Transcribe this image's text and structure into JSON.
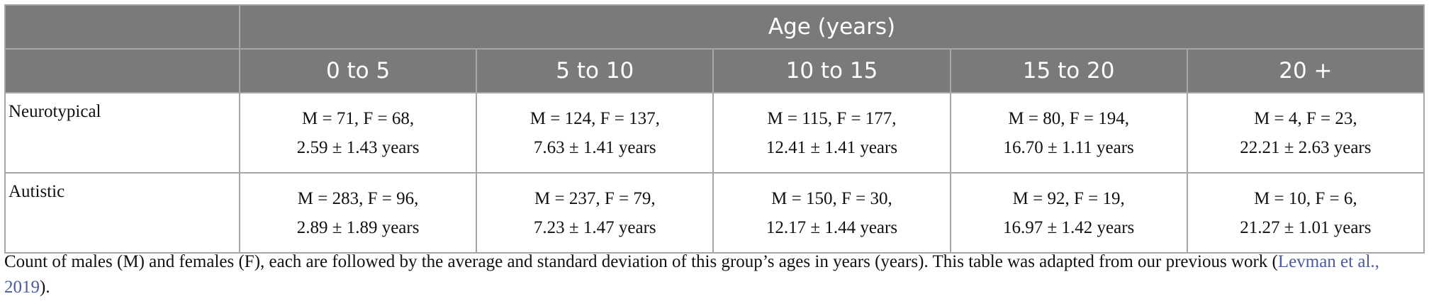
{
  "header": {
    "group": "Age (years)",
    "columns": [
      "0 to 5",
      "5 to 10",
      "10 to 15",
      "15 to 20",
      "20 +"
    ]
  },
  "table": {
    "rows": [
      {
        "label": "Neurotypical",
        "cells": [
          [
            "M = 71, F = 68,",
            "2.59 ± 1.43 years"
          ],
          [
            "M = 124, F = 137,",
            "7.63 ± 1.41 years"
          ],
          [
            "M = 115, F = 177,",
            "12.41 ± 1.41 years"
          ],
          [
            "M = 80, F = 194,",
            "16.70 ± 1.11 years"
          ],
          [
            "M = 4, F = 23,",
            "22.21 ± 2.63 years"
          ]
        ]
      },
      {
        "label": "Autistic",
        "cells": [
          [
            "M = 283, F = 96,",
            "2.89 ± 1.89 years"
          ],
          [
            "M = 237, F = 79,",
            "7.23 ± 1.47 years"
          ],
          [
            "M = 150, F = 30,",
            "12.17 ± 1.44 years"
          ],
          [
            "M = 92, F = 19,",
            "16.97 ± 1.42 years"
          ],
          [
            "M = 10, F = 6,",
            "21.27 ± 1.01 years"
          ]
        ]
      }
    ]
  },
  "caption": {
    "text": "Count of males (M) and females (F), each are followed by the average and standard deviation of this group’s ages in years (years). This table was adapted from our previous work (",
    "link": "Levman et al., 2019",
    "end": ")."
  }
}
